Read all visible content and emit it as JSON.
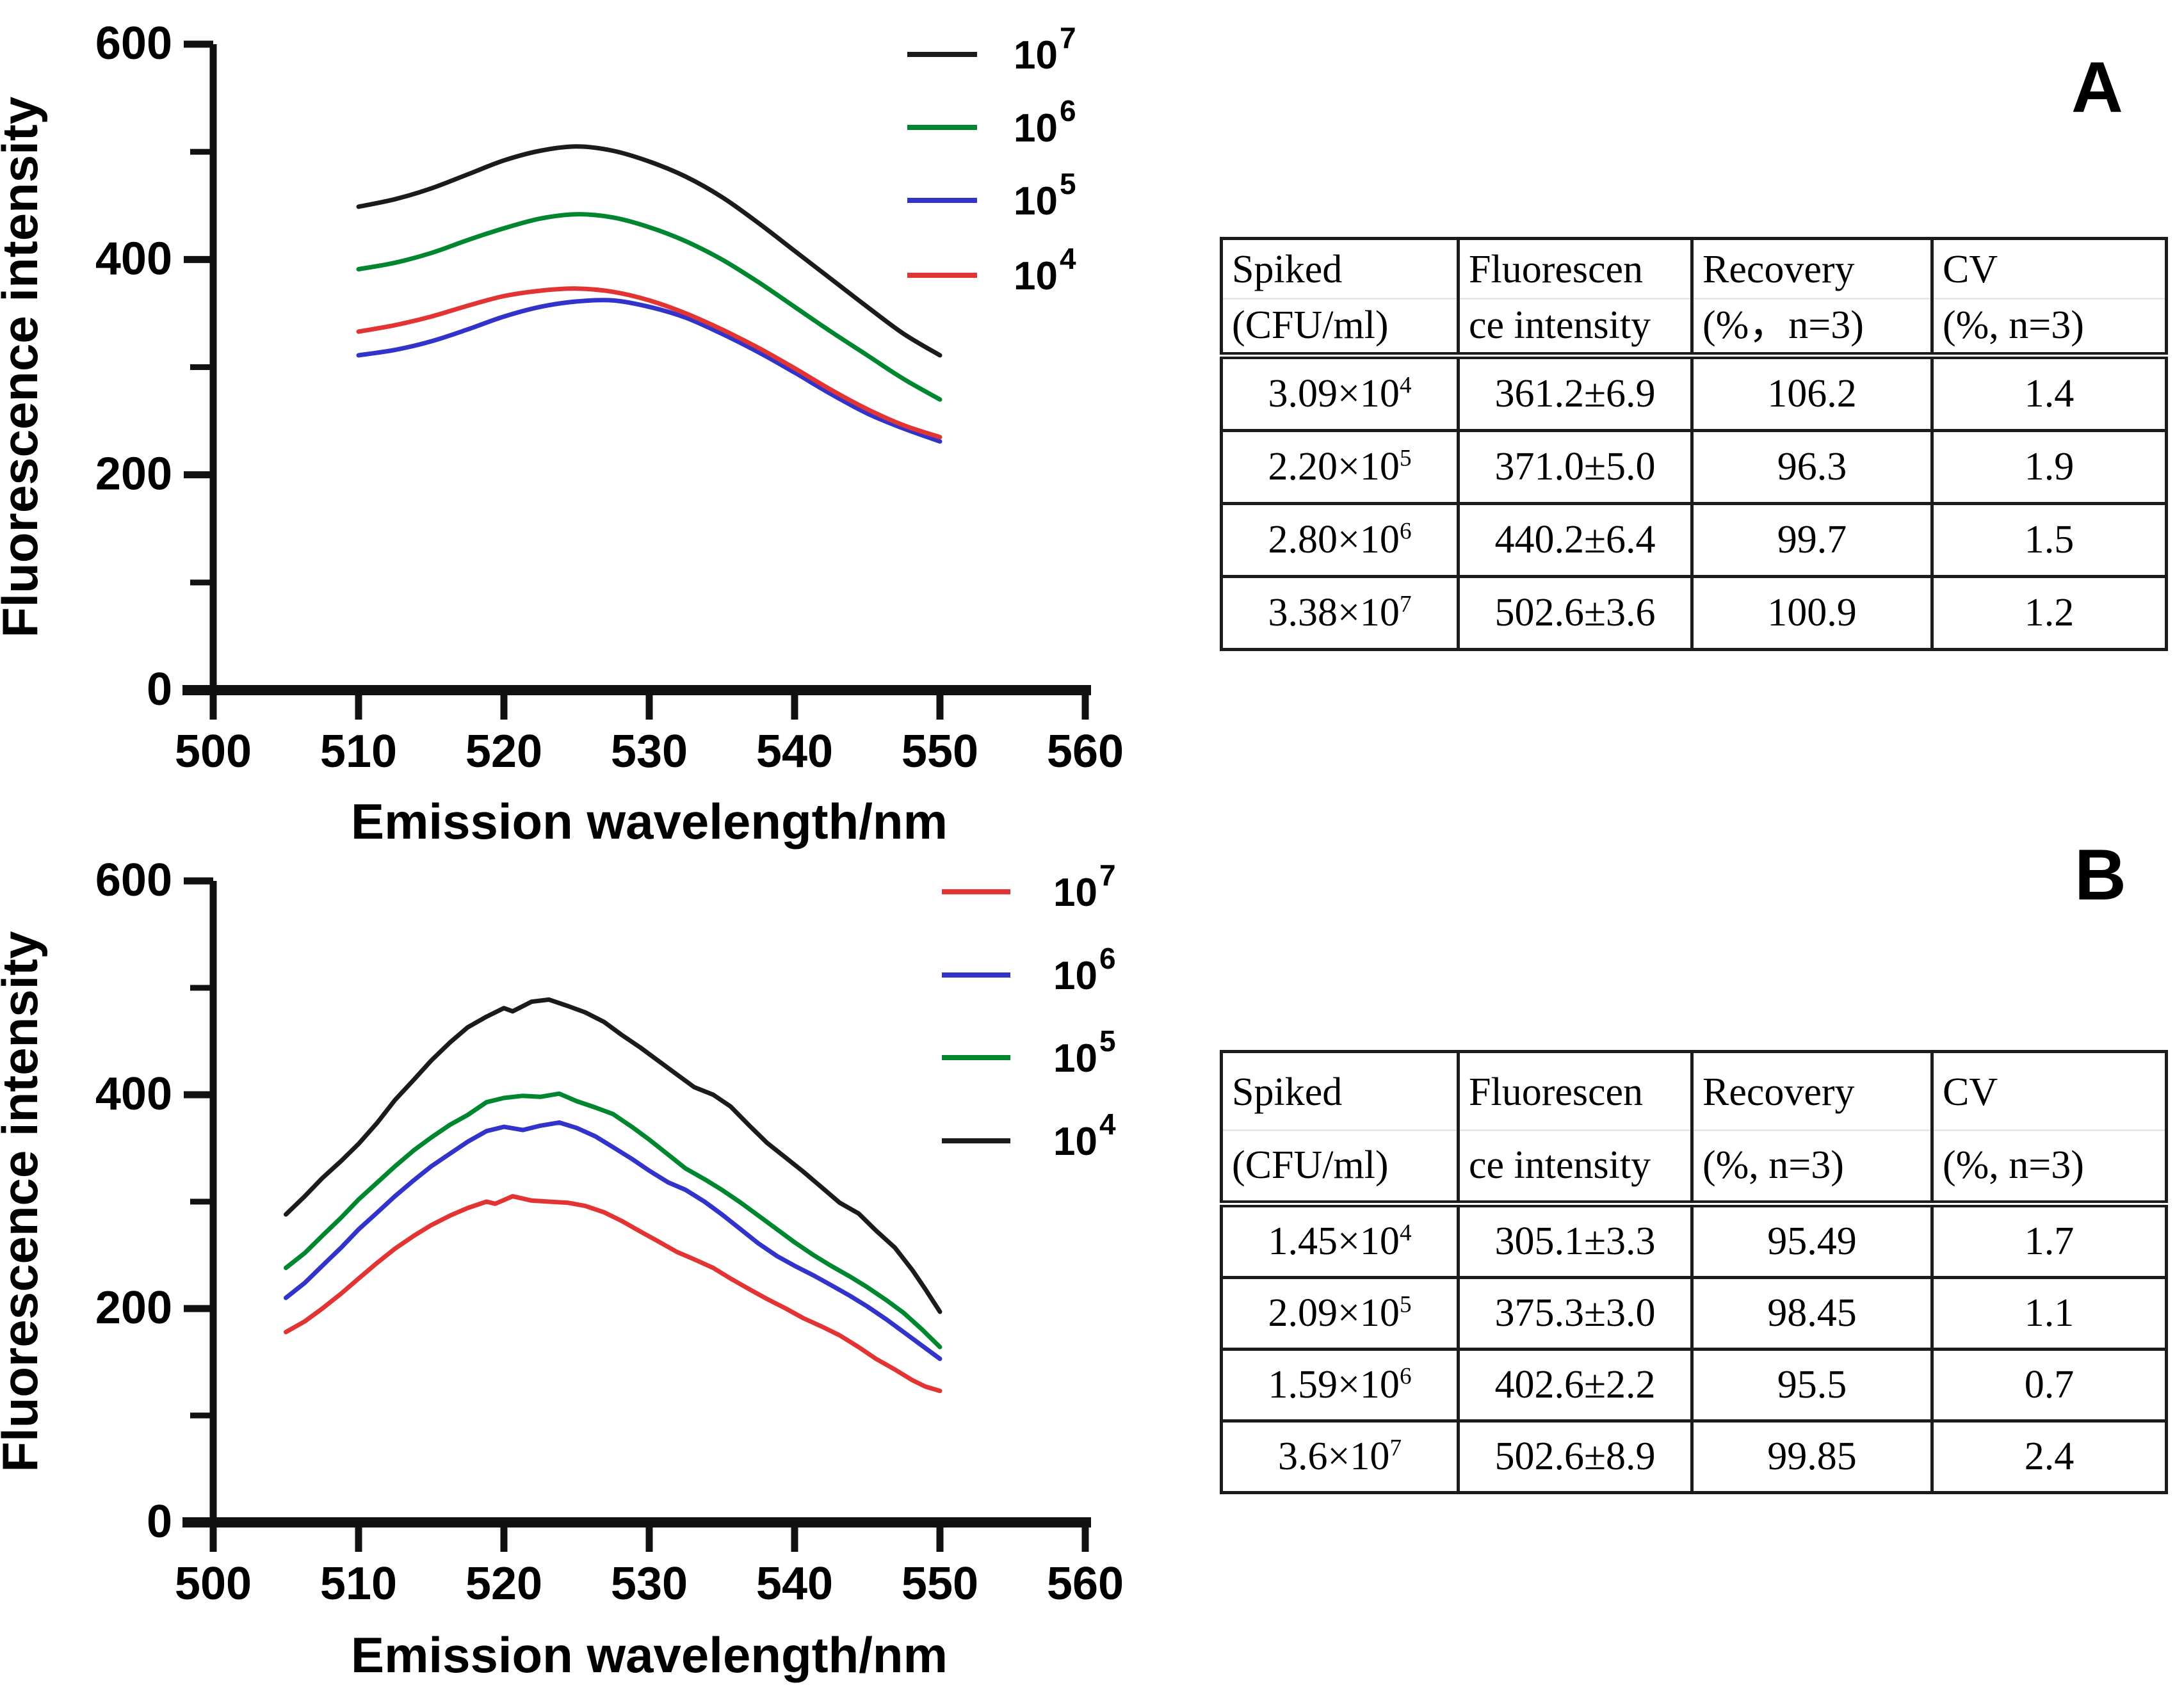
{
  "figure": {
    "panel_a_label": "A",
    "panel_b_label": "B"
  },
  "chart_data": [
    {
      "id": "A",
      "type": "line",
      "line_style": "smooth",
      "title": "",
      "xlabel": "Emission wavelength/nm",
      "ylabel": "Fluorescence intensity",
      "xlim": [
        500,
        560
      ],
      "ylim": [
        0,
        600
      ],
      "xticks": [
        500,
        510,
        520,
        530,
        540,
        550,
        560
      ],
      "yticks_major": [
        0,
        200,
        400,
        600
      ],
      "yticks_minor": [
        100,
        300,
        500
      ],
      "grid": "off",
      "legend_position": "top-right",
      "series": [
        {
          "name": "10^7",
          "label_base": "10",
          "label_exp": "7",
          "color": "#1b1b1b",
          "points": [
            [
              510,
              449
            ],
            [
              512.5,
              456
            ],
            [
              515,
              466
            ],
            [
              517.5,
              479
            ],
            [
              520,
              492
            ],
            [
              522.5,
              501
            ],
            [
              525,
              505
            ],
            [
              527.5,
              501
            ],
            [
              530,
              491
            ],
            [
              532.5,
              477
            ],
            [
              535,
              458
            ],
            [
              537.5,
              434
            ],
            [
              540,
              408
            ],
            [
              542.5,
              382
            ],
            [
              545,
              356
            ],
            [
              547.5,
              331
            ],
            [
              550,
              311
            ]
          ]
        },
        {
          "name": "10^6",
          "label_base": "10",
          "label_exp": "6",
          "color": "#00862f",
          "points": [
            [
              510,
              391
            ],
            [
              512.5,
              397
            ],
            [
              515,
              406
            ],
            [
              517.5,
              418
            ],
            [
              520,
              429
            ],
            [
              522.5,
              438
            ],
            [
              525,
              442
            ],
            [
              527.5,
              439
            ],
            [
              530,
              430
            ],
            [
              532.5,
              417
            ],
            [
              535,
              400
            ],
            [
              537.5,
              379
            ],
            [
              540,
              356
            ],
            [
              542.5,
              333
            ],
            [
              545,
              311
            ],
            [
              547.5,
              289
            ],
            [
              550,
              270
            ]
          ]
        },
        {
          "name": "10^5",
          "label_base": "10",
          "label_exp": "5",
          "color": "#3233cb",
          "points": [
            [
              510,
              311
            ],
            [
              512.5,
              316
            ],
            [
              515,
              324
            ],
            [
              517.5,
              335
            ],
            [
              520,
              347
            ],
            [
              522.5,
              356
            ],
            [
              525,
              361
            ],
            [
              527.5,
              362
            ],
            [
              530,
              356
            ],
            [
              532.5,
              346
            ],
            [
              535,
              331
            ],
            [
              537.5,
              314
            ],
            [
              540,
              295
            ],
            [
              542.5,
              275
            ],
            [
              545,
              257
            ],
            [
              547.5,
              243
            ],
            [
              550,
              231
            ]
          ]
        },
        {
          "name": "10^4",
          "label_base": "10",
          "label_exp": "4",
          "color": "#e33434",
          "points": [
            [
              510,
              333
            ],
            [
              512.5,
              339
            ],
            [
              515,
              347
            ],
            [
              517.5,
              357
            ],
            [
              520,
              366
            ],
            [
              522.5,
              371
            ],
            [
              525,
              373
            ],
            [
              527.5,
              370
            ],
            [
              530,
              362
            ],
            [
              532.5,
              350
            ],
            [
              535,
              335
            ],
            [
              537.5,
              318
            ],
            [
              540,
              299
            ],
            [
              542.5,
              279
            ],
            [
              545,
              261
            ],
            [
              547.5,
              246
            ],
            [
              550,
              235
            ]
          ]
        }
      ]
    },
    {
      "id": "B",
      "type": "line",
      "line_style": "linear",
      "title": "",
      "xlabel": "Emission wavelength/nm",
      "ylabel": "Fluorescence intensity",
      "xlim": [
        500,
        560
      ],
      "ylim": [
        0,
        600
      ],
      "xticks": [
        500,
        510,
        520,
        530,
        540,
        550,
        560
      ],
      "yticks_major": [
        0,
        200,
        400,
        600
      ],
      "yticks_minor": [
        100,
        300,
        500
      ],
      "grid": "off",
      "legend_position": "top-right",
      "series": [
        {
          "name": "10^7",
          "label_base": "10",
          "label_exp": "7",
          "color": "#e33434",
          "points": [
            [
              505,
              178
            ],
            [
              506.3,
              188
            ],
            [
              507.5,
              200
            ],
            [
              508.8,
              214
            ],
            [
              510,
              228
            ],
            [
              511.3,
              243
            ],
            [
              512.5,
              256
            ],
            [
              513.8,
              268
            ],
            [
              515,
              278
            ],
            [
              516.3,
              287
            ],
            [
              517.5,
              294
            ],
            [
              518.8,
              300
            ],
            [
              519.4,
              298
            ],
            [
              520.6,
              305
            ],
            [
              521.9,
              301
            ],
            [
              523.1,
              300
            ],
            [
              524.4,
              299
            ],
            [
              525.6,
              296
            ],
            [
              526.9,
              290
            ],
            [
              528.1,
              282
            ],
            [
              529.4,
              272
            ],
            [
              530.6,
              263
            ],
            [
              531.9,
              253
            ],
            [
              533.1,
              246
            ],
            [
              534.4,
              238
            ],
            [
              535.6,
              228
            ],
            [
              536.9,
              218
            ],
            [
              538.1,
              209
            ],
            [
              539.4,
              200
            ],
            [
              540.6,
              191
            ],
            [
              541.9,
              183
            ],
            [
              543.1,
              175
            ],
            [
              544.4,
              164
            ],
            [
              545.6,
              153
            ],
            [
              546.9,
              143
            ],
            [
              548.1,
              133
            ],
            [
              549,
              127
            ],
            [
              550,
              123
            ]
          ]
        },
        {
          "name": "10^6",
          "label_base": "10",
          "label_exp": "6",
          "color": "#3233cb",
          "points": [
            [
              505,
              210
            ],
            [
              506.3,
              224
            ],
            [
              507.5,
              240
            ],
            [
              508.8,
              257
            ],
            [
              510,
              274
            ],
            [
              511.3,
              290
            ],
            [
              512.5,
              305
            ],
            [
              513.8,
              320
            ],
            [
              515,
              333
            ],
            [
              516.3,
              345
            ],
            [
              517.5,
              356
            ],
            [
              518.8,
              366
            ],
            [
              520,
              370
            ],
            [
              521.3,
              367
            ],
            [
              522.5,
              371
            ],
            [
              523.8,
              374
            ],
            [
              525,
              369
            ],
            [
              526.3,
              361
            ],
            [
              527.5,
              351
            ],
            [
              528.8,
              340
            ],
            [
              530,
              329
            ],
            [
              531.3,
              318
            ],
            [
              532.5,
              311
            ],
            [
              533.8,
              300
            ],
            [
              535,
              288
            ],
            [
              536.3,
              274
            ],
            [
              537.5,
              261
            ],
            [
              538.8,
              249
            ],
            [
              540,
              240
            ],
            [
              541.3,
              231
            ],
            [
              542.5,
              222
            ],
            [
              543.8,
              212
            ],
            [
              545,
              202
            ],
            [
              546.3,
              190
            ],
            [
              547.5,
              178
            ],
            [
              548.8,
              165
            ],
            [
              550,
              153
            ]
          ]
        },
        {
          "name": "10^5",
          "label_base": "10",
          "label_exp": "5",
          "color": "#00862f",
          "points": [
            [
              505,
              238
            ],
            [
              506.3,
              252
            ],
            [
              507.5,
              268
            ],
            [
              508.8,
              285
            ],
            [
              510,
              302
            ],
            [
              511.3,
              318
            ],
            [
              512.5,
              333
            ],
            [
              513.8,
              348
            ],
            [
              515,
              360
            ],
            [
              516.3,
              372
            ],
            [
              517.5,
              381
            ],
            [
              518.8,
              393
            ],
            [
              520,
              397
            ],
            [
              521.3,
              399
            ],
            [
              522.5,
              398
            ],
            [
              523.8,
              401
            ],
            [
              525,
              394
            ],
            [
              526.3,
              388
            ],
            [
              527.5,
              382
            ],
            [
              528.8,
              370
            ],
            [
              530,
              358
            ],
            [
              531.3,
              344
            ],
            [
              532.5,
              331
            ],
            [
              533.8,
              321
            ],
            [
              535,
              311
            ],
            [
              536.3,
              299
            ],
            [
              537.5,
              287
            ],
            [
              538.8,
              274
            ],
            [
              540,
              262
            ],
            [
              541.3,
              250
            ],
            [
              542.5,
              240
            ],
            [
              543.8,
              230
            ],
            [
              545,
              220
            ],
            [
              546.3,
              208
            ],
            [
              547.5,
              196
            ],
            [
              548.8,
              180
            ],
            [
              550,
              164
            ]
          ]
        },
        {
          "name": "10^4",
          "label_base": "10",
          "label_exp": "4",
          "color": "#1b1b1b",
          "points": [
            [
              505,
              288
            ],
            [
              506.3,
              305
            ],
            [
              507.5,
              322
            ],
            [
              508.8,
              338
            ],
            [
              510,
              354
            ],
            [
              511.3,
              374
            ],
            [
              512.5,
              395
            ],
            [
              513.8,
              414
            ],
            [
              515,
              432
            ],
            [
              516.3,
              449
            ],
            [
              517.5,
              463
            ],
            [
              518.8,
              473
            ],
            [
              520,
              481
            ],
            [
              520.6,
              478
            ],
            [
              521.9,
              487
            ],
            [
              523.1,
              489
            ],
            [
              524.4,
              483
            ],
            [
              525.6,
              477
            ],
            [
              526.9,
              468
            ],
            [
              528.1,
              456
            ],
            [
              529.4,
              444
            ],
            [
              530.6,
              432
            ],
            [
              531.9,
              419
            ],
            [
              533.1,
              407
            ],
            [
              534.4,
              400
            ],
            [
              535.6,
              389
            ],
            [
              536.9,
              371
            ],
            [
              538.1,
              355
            ],
            [
              539.4,
              341
            ],
            [
              540.6,
              328
            ],
            [
              541.9,
              313
            ],
            [
              543.1,
              299
            ],
            [
              544.4,
              289
            ],
            [
              545.6,
              273
            ],
            [
              546.9,
              257
            ],
            [
              548.1,
              236
            ],
            [
              549,
              218
            ],
            [
              550,
              197
            ]
          ]
        }
      ]
    }
  ],
  "tables": [
    {
      "id": "A",
      "headers": [
        {
          "line1": "Spiked",
          "line2": "(CFU/ml)"
        },
        {
          "line1": "Fluorescen",
          "line2": "ce intensity"
        },
        {
          "line1": "Recovery",
          "line2": "(%，n=3)"
        },
        {
          "line1": "CV",
          "line2": "(%, n=3)"
        }
      ],
      "rows": [
        {
          "spiked_base": "3.09×10",
          "spiked_exp": "4",
          "fluorescence": "361.2±6.9",
          "recovery": "106.2",
          "cv": "1.4"
        },
        {
          "spiked_base": "2.20×10",
          "spiked_exp": "5",
          "fluorescence": "371.0±5.0",
          "recovery": "96.3",
          "cv": "1.9"
        },
        {
          "spiked_base": "2.80×10",
          "spiked_exp": "6",
          "fluorescence": "440.2±6.4",
          "recovery": "99.7",
          "cv": "1.5"
        },
        {
          "spiked_base": "3.38×10",
          "spiked_exp": "7",
          "fluorescence": "502.6±3.6",
          "recovery": "100.9",
          "cv": "1.2"
        }
      ]
    },
    {
      "id": "B",
      "headers": [
        {
          "line1": "Spiked",
          "line2": "(CFU/ml)"
        },
        {
          "line1": "Fluorescen",
          "line2": "ce intensity"
        },
        {
          "line1": "Recovery",
          "line2": "(%, n=3)"
        },
        {
          "line1": "CV",
          "line2": "(%, n=3)"
        }
      ],
      "rows": [
        {
          "spiked_base": "1.45×10",
          "spiked_exp": "4",
          "fluorescence": "305.1±3.3",
          "recovery": "95.49",
          "cv": "1.7"
        },
        {
          "spiked_base": "2.09×10",
          "spiked_exp": "5",
          "fluorescence": "375.3±3.0",
          "recovery": "98.45",
          "cv": "1.1"
        },
        {
          "spiked_base": "1.59×10",
          "spiked_exp": "6",
          "fluorescence": "402.6±2.2",
          "recovery": "95.5",
          "cv": "0.7"
        },
        {
          "spiked_base": "3.6×10",
          "spiked_exp": "7",
          "fluorescence": "502.6±8.9",
          "recovery": "99.85",
          "cv": "2.4"
        }
      ]
    }
  ]
}
